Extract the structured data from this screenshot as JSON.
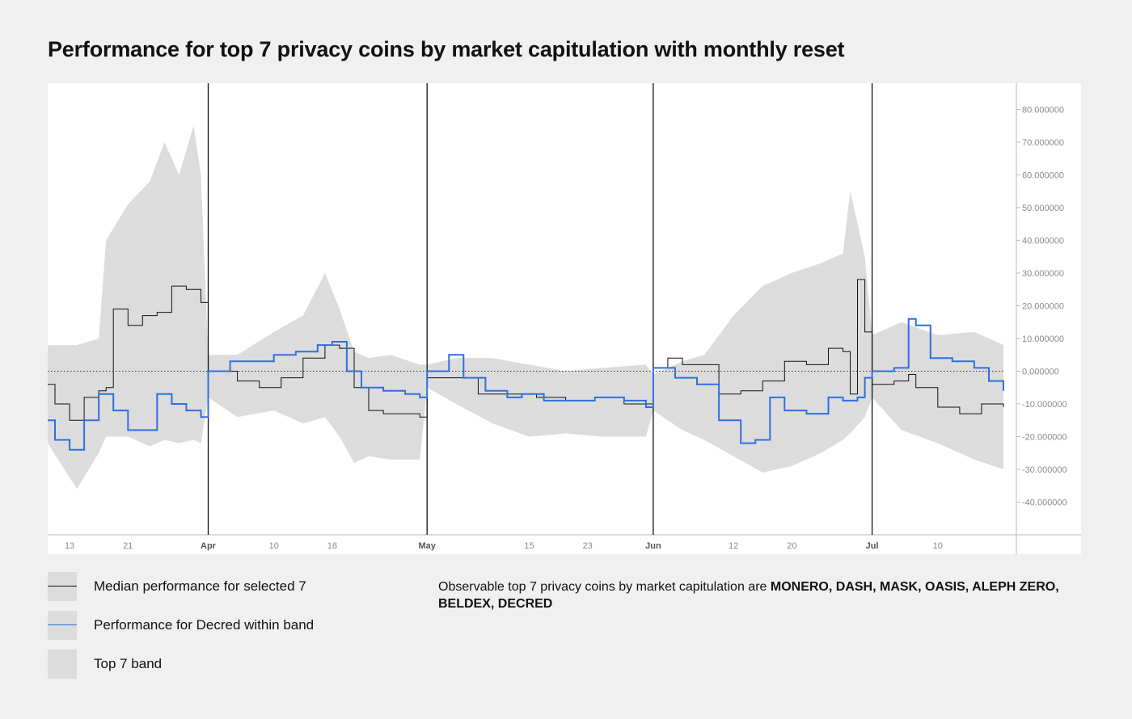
{
  "title": "Performance for top 7 privacy coins by market capitulation with monthly reset",
  "legend": [
    {
      "label": "Median performance for selected 7",
      "color": "#111111",
      "kind": "line"
    },
    {
      "label": "Performance for Decred within band",
      "color": "#2f6fe0",
      "kind": "line"
    },
    {
      "label": "Top 7 band",
      "color": "#dcdcdc",
      "kind": "area"
    }
  ],
  "note": {
    "text": "Observable top 7 privacy coins by market capitulation are ",
    "coins": "MONERO, DASH, MASK, OASIS, ALEPH ZERO, BELDEX, DECRED"
  },
  "colors": {
    "band": "#dcdcdc",
    "median": "#111111",
    "decred": "#2f6fe0",
    "background": "#f0f0f0",
    "plot": "#ffffff"
  },
  "chart_data": {
    "type": "area",
    "title": "Performance for top 7 privacy coins by market capitulation with monthly reset",
    "x_range": [
      "Mar 10",
      "Jul 19"
    ],
    "ylim": [
      -50,
      88
    ],
    "y_ticks": [
      "80.000000",
      "70.000000",
      "60.000000",
      "50.000000",
      "40.000000",
      "30.000000",
      "20.000000",
      "10.000000",
      "0.000000",
      "-10.000000",
      "-20.000000",
      "-30.000000",
      "-40.000000"
    ],
    "x_ticks": [
      {
        "label": "13",
        "date": "Mar 13",
        "bold": false
      },
      {
        "label": "21",
        "date": "Mar 21",
        "bold": false
      },
      {
        "label": "Apr",
        "date": "Apr 1",
        "bold": true
      },
      {
        "label": "10",
        "date": "Apr 10",
        "bold": false
      },
      {
        "label": "18",
        "date": "Apr 18",
        "bold": false
      },
      {
        "label": "May",
        "date": "May 1",
        "bold": true
      },
      {
        "label": "15",
        "date": "May 15",
        "bold": false
      },
      {
        "label": "23",
        "date": "May 23",
        "bold": false
      },
      {
        "label": "Jun",
        "date": "Jun 1",
        "bold": true
      },
      {
        "label": "12",
        "date": "Jun 12",
        "bold": false
      },
      {
        "label": "20",
        "date": "Jun 20",
        "bold": false
      },
      {
        "label": "Jul",
        "date": "Jul 1",
        "bold": true
      },
      {
        "label": "10",
        "date": "Jul 10",
        "bold": false
      }
    ],
    "month_resets": [
      "Apr 1",
      "May 1",
      "Jun 1",
      "Jul 1"
    ],
    "zero_line": true,
    "grid": false,
    "legend_position": "bottom-left",
    "series": [
      {
        "name": "Top 7 band",
        "type": "band",
        "x": [
          "Mar 10",
          "Mar 14",
          "Mar 17",
          "Mar 18",
          "Mar 21",
          "Mar 24",
          "Mar 26",
          "Mar 28",
          "Mar 30",
          "Mar 31",
          "Apr 1",
          "Apr 5",
          "Apr 10",
          "Apr 14",
          "Apr 17",
          "Apr 19",
          "Apr 21",
          "Apr 23",
          "Apr 26",
          "Apr 30",
          "May 1",
          "May 5",
          "May 10",
          "May 15",
          "May 20",
          "May 25",
          "May 31",
          "Jun 1",
          "Jun 5",
          "Jun 8",
          "Jun 12",
          "Jun 16",
          "Jun 20",
          "Jun 24",
          "Jun 27",
          "Jun 28",
          "Jun 30",
          "Jul 1",
          "Jul 5",
          "Jul 10",
          "Jul 15",
          "Jul 19"
        ],
        "upper": [
          8,
          8,
          10,
          40,
          51,
          58,
          70,
          60,
          75,
          60,
          5,
          5,
          12,
          17,
          30,
          19,
          6,
          4,
          5,
          2,
          2,
          4,
          4,
          2,
          0,
          1,
          2,
          -1,
          3,
          5,
          17,
          26,
          30,
          33,
          36,
          55,
          35,
          11,
          15,
          11,
          12,
          8
        ],
        "lower": [
          -22,
          -36,
          -25,
          -20,
          -20,
          -23,
          -21,
          -22,
          -21,
          -22,
          -8,
          -14,
          -12,
          -16,
          -14,
          -20,
          -28,
          -26,
          -27,
          -27,
          -5,
          -10,
          -16,
          -20,
          -19,
          -20,
          -20,
          -12,
          -18,
          -21,
          -26,
          -31,
          -29,
          -25,
          -21,
          -19,
          -14,
          -8,
          -18,
          -22,
          -27,
          -30
        ]
      },
      {
        "name": "Median performance for selected 7",
        "type": "line",
        "x": [
          "Mar 10",
          "Mar 11",
          "Mar 13",
          "Mar 15",
          "Mar 17",
          "Mar 18",
          "Mar 19",
          "Mar 21",
          "Mar 23",
          "Mar 25",
          "Mar 27",
          "Mar 29",
          "Mar 31",
          "Apr 1",
          "Apr 5",
          "Apr 8",
          "Apr 11",
          "Apr 14",
          "Apr 17",
          "Apr 19",
          "Apr 21",
          "Apr 23",
          "Apr 25",
          "Apr 28",
          "Apr 30",
          "May 1",
          "May 5",
          "May 8",
          "May 12",
          "May 16",
          "May 20",
          "May 24",
          "May 28",
          "May 31",
          "Jun 1",
          "Jun 3",
          "Jun 5",
          "Jun 8",
          "Jun 10",
          "Jun 13",
          "Jun 16",
          "Jun 19",
          "Jun 22",
          "Jun 25",
          "Jun 27",
          "Jun 28",
          "Jun 29",
          "Jun 30",
          "Jul 1",
          "Jul 4",
          "Jul 6",
          "Jul 7",
          "Jul 10",
          "Jul 13",
          "Jul 16",
          "Jul 19"
        ],
        "y": [
          -4,
          -10,
          -15,
          -8,
          -6,
          -5,
          19,
          14,
          17,
          18,
          26,
          25,
          21,
          0,
          -3,
          -5,
          -2,
          4,
          8,
          7,
          -5,
          -12,
          -13,
          -13,
          -14,
          -2,
          -2,
          -7,
          -7,
          -8,
          -9,
          -8,
          -10,
          -10,
          1,
          4,
          2,
          2,
          -7,
          -6,
          -3,
          3,
          2,
          7,
          6,
          -7,
          28,
          12,
          -4,
          -3,
          -1,
          -5,
          -11,
          -13,
          -10,
          -11
        ]
      },
      {
        "name": "Performance for Decred within band",
        "type": "line",
        "x": [
          "Mar 10",
          "Mar 11",
          "Mar 13",
          "Mar 15",
          "Mar 17",
          "Mar 19",
          "Mar 21",
          "Mar 23",
          "Mar 25",
          "Mar 27",
          "Mar 29",
          "Mar 31",
          "Apr 1",
          "Apr 4",
          "Apr 7",
          "Apr 10",
          "Apr 13",
          "Apr 16",
          "Apr 18",
          "Apr 20",
          "Apr 22",
          "Apr 25",
          "Apr 28",
          "Apr 30",
          "May 1",
          "May 4",
          "May 6",
          "May 9",
          "May 12",
          "May 14",
          "May 17",
          "May 20",
          "May 24",
          "May 28",
          "May 31",
          "Jun 1",
          "Jun 4",
          "Jun 7",
          "Jun 10",
          "Jun 13",
          "Jun 15",
          "Jun 17",
          "Jun 19",
          "Jun 22",
          "Jun 25",
          "Jun 27",
          "Jun 29",
          "Jun 30",
          "Jul 1",
          "Jul 4",
          "Jul 6",
          "Jul 7",
          "Jul 9",
          "Jul 12",
          "Jul 15",
          "Jul 17",
          "Jul 19"
        ],
        "y": [
          -15,
          -21,
          -24,
          -15,
          -7,
          -12,
          -18,
          -18,
          -7,
          -10,
          -12,
          -14,
          0,
          3,
          3,
          5,
          6,
          8,
          9,
          0,
          -5,
          -6,
          -7,
          -8,
          0,
          5,
          -2,
          -6,
          -8,
          -7,
          -9,
          -9,
          -8,
          -9,
          -11,
          1,
          -2,
          -4,
          -15,
          -22,
          -21,
          -8,
          -12,
          -13,
          -8,
          -9,
          -8,
          -2,
          0,
          1,
          16,
          14,
          4,
          3,
          1,
          -3,
          -6
        ]
      }
    ]
  }
}
